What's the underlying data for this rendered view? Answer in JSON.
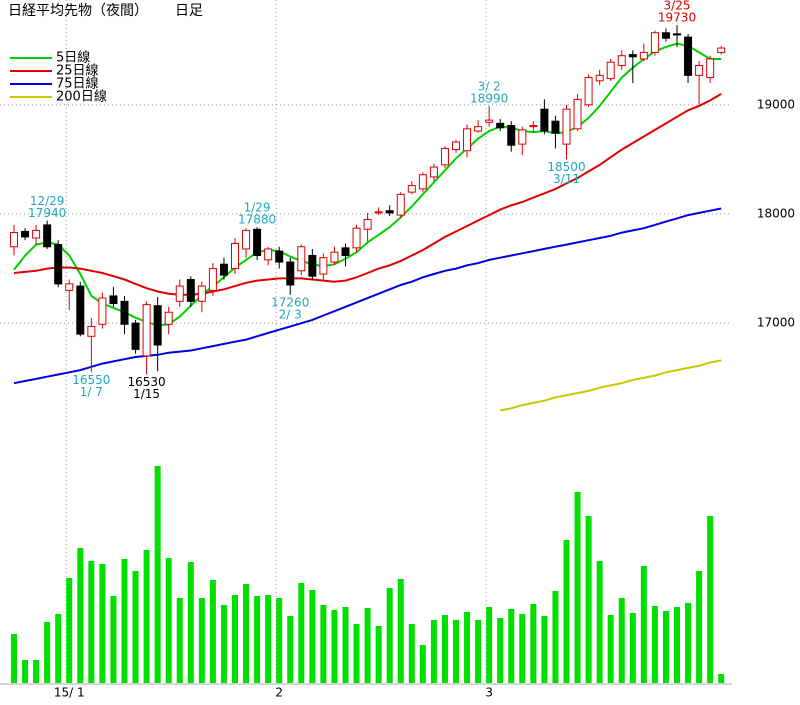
{
  "chart_data": {
    "type": "candlestick",
    "title": "日経平均先物（夜間）",
    "subtitle": "日足",
    "categories": [
      null,
      null,
      null,
      null,
      null,
      "15/ 1",
      null,
      null,
      null,
      null,
      null,
      null,
      null,
      null,
      null,
      null,
      null,
      null,
      null,
      null,
      null,
      null,
      null,
      null,
      "2",
      null,
      null,
      null,
      null,
      null,
      null,
      null,
      null,
      null,
      null,
      null,
      null,
      null,
      null,
      null,
      null,
      null,
      null,
      "3",
      null,
      null,
      null,
      null,
      null,
      null,
      null,
      null,
      null,
      null,
      null,
      null,
      null,
      null,
      null,
      null,
      null,
      null,
      null,
      null,
      null
    ],
    "open": [
      17700,
      17840,
      17780,
      17900,
      17720,
      17300,
      17340,
      16880,
      16990,
      17250,
      17200,
      17000,
      16700,
      17160,
      16990,
      17200,
      17400,
      17200,
      17300,
      17540,
      17500,
      17680,
      17860,
      17580,
      17660,
      17560,
      17480,
      17620,
      17450,
      17560,
      17690,
      17690,
      17860,
      18010,
      18030,
      17990,
      18200,
      18230,
      18340,
      18450,
      18590,
      18580,
      18760,
      18840,
      18830,
      18810,
      18640,
      18800,
      18960,
      18850,
      18640,
      18780,
      19000,
      19220,
      19240,
      19360,
      19460,
      19420,
      19480,
      19660,
      19650,
      19620,
      19270,
      19250,
      19480
    ],
    "high": [
      17900,
      17870,
      17900,
      17940,
      17760,
      17400,
      17380,
      17050,
      17280,
      17330,
      17250,
      17030,
      17200,
      17240,
      17150,
      17400,
      17430,
      17380,
      17550,
      17600,
      17780,
      17870,
      17880,
      17700,
      17700,
      17600,
      17720,
      17680,
      17640,
      17700,
      17730,
      17900,
      18010,
      18060,
      18080,
      18200,
      18300,
      18380,
      18460,
      18620,
      18680,
      18820,
      18860,
      18990,
      18870,
      18850,
      18800,
      18850,
      19050,
      18900,
      19000,
      19100,
      19280,
      19320,
      19420,
      19500,
      19500,
      19560,
      19680,
      19700,
      19730,
      19650,
      19400,
      19450,
      19540
    ],
    "low": [
      17620,
      17760,
      17720,
      17680,
      17330,
      17120,
      16880,
      16550,
      16950,
      17150,
      16900,
      16720,
      16530,
      16560,
      16900,
      17150,
      17150,
      17100,
      17250,
      17400,
      17450,
      17600,
      17580,
      17530,
      17500,
      17260,
      17440,
      17400,
      17400,
      17530,
      17520,
      17650,
      17750,
      17990,
      17980,
      17960,
      18180,
      18200,
      18300,
      18420,
      18560,
      18520,
      18740,
      18800,
      18760,
      18570,
      18540,
      18750,
      18730,
      18600,
      18500,
      18760,
      18980,
      19180,
      19220,
      19320,
      19200,
      19400,
      19450,
      19580,
      19530,
      19200,
      19000,
      19200,
      19460
    ],
    "close": [
      17830,
      17790,
      17850,
      17700,
      17360,
      17360,
      16900,
      16970,
      17230,
      17180,
      16990,
      16760,
      17170,
      16800,
      17100,
      17340,
      17200,
      17340,
      17500,
      17440,
      17730,
      17850,
      17620,
      17680,
      17560,
      17350,
      17700,
      17430,
      17600,
      17650,
      17620,
      17870,
      17950,
      18020,
      18010,
      18180,
      18260,
      18360,
      18430,
      18600,
      18660,
      18780,
      18800,
      18860,
      18790,
      18630,
      18770,
      18810,
      18760,
      18740,
      18960,
      19050,
      19250,
      19270,
      19390,
      19450,
      19440,
      19480,
      19660,
      19610,
      19640,
      19270,
      19360,
      19420,
      19520
    ],
    "up_color": "#e00000",
    "down_color": "#000000",
    "lines": [
      {
        "name": "5日線",
        "color": "#00d000",
        "values": [
          17490,
          17620,
          17720,
          17740,
          17720,
          17620,
          17450,
          17250,
          17180,
          17140,
          17100,
          17050,
          17010,
          16980,
          16990,
          17060,
          17160,
          17260,
          17340,
          17420,
          17510,
          17580,
          17650,
          17670,
          17660,
          17610,
          17570,
          17540,
          17520,
          17540,
          17590,
          17650,
          17740,
          17810,
          17880,
          17970,
          18070,
          18180,
          18290,
          18400,
          18510,
          18600,
          18690,
          18760,
          18800,
          18790,
          18760,
          18750,
          18760,
          18740,
          18750,
          18800,
          18880,
          18990,
          19120,
          19250,
          19340,
          19420,
          19490,
          19530,
          19560,
          19540,
          19480,
          19420,
          19420
        ]
      },
      {
        "name": "25日線",
        "color": "#e00000",
        "values": [
          17460,
          17470,
          17480,
          17500,
          17510,
          17510,
          17500,
          17480,
          17460,
          17430,
          17400,
          17360,
          17320,
          17290,
          17270,
          17260,
          17260,
          17270,
          17290,
          17310,
          17340,
          17370,
          17390,
          17400,
          17410,
          17410,
          17410,
          17400,
          17390,
          17380,
          17390,
          17420,
          17460,
          17500,
          17530,
          17570,
          17620,
          17670,
          17730,
          17790,
          17840,
          17890,
          17940,
          17990,
          18040,
          18080,
          18110,
          18150,
          18190,
          18230,
          18280,
          18330,
          18390,
          18450,
          18520,
          18590,
          18650,
          18710,
          18770,
          18830,
          18890,
          18950,
          18990,
          19040,
          19100
        ]
      },
      {
        "name": "75日線",
        "color": "#0000e0",
        "values": [
          16450,
          16470,
          16490,
          16510,
          16530,
          16550,
          16570,
          16600,
          16630,
          16650,
          16670,
          16690,
          16700,
          16710,
          16730,
          16740,
          16750,
          16770,
          16790,
          16810,
          16830,
          16850,
          16880,
          16910,
          16940,
          16970,
          17000,
          17030,
          17070,
          17110,
          17150,
          17190,
          17230,
          17270,
          17310,
          17350,
          17380,
          17420,
          17450,
          17480,
          17500,
          17530,
          17550,
          17580,
          17600,
          17620,
          17640,
          17660,
          17680,
          17700,
          17720,
          17740,
          17760,
          17780,
          17800,
          17830,
          17850,
          17870,
          17900,
          17930,
          17960,
          17990,
          18010,
          18030,
          18050
        ]
      },
      {
        "name": "200日線",
        "color": "#c8c800",
        "values": [
          null,
          null,
          null,
          null,
          null,
          null,
          null,
          null,
          null,
          null,
          null,
          null,
          null,
          null,
          null,
          null,
          null,
          null,
          null,
          null,
          null,
          null,
          null,
          null,
          null,
          null,
          null,
          null,
          null,
          null,
          null,
          null,
          null,
          null,
          null,
          null,
          null,
          null,
          null,
          null,
          null,
          null,
          null,
          null,
          16200,
          16220,
          16250,
          16270,
          16290,
          16320,
          16340,
          16360,
          16380,
          16410,
          16430,
          16450,
          16480,
          16500,
          16520,
          16550,
          16570,
          16590,
          16610,
          16640,
          16660
        ]
      }
    ],
    "volume": {
      "color": "#00e000",
      "ylim": [
        0,
        220
      ],
      "values": [
        49,
        23,
        23,
        61,
        69,
        105,
        135,
        122,
        119,
        87,
        124,
        112,
        133,
        217,
        125,
        85,
        121,
        85,
        103,
        78,
        88,
        99,
        87,
        88,
        85,
        67,
        100,
        93,
        78,
        73,
        76,
        59,
        75,
        57,
        95,
        104,
        59,
        38,
        63,
        68,
        63,
        71,
        63,
        76,
        65,
        74,
        69,
        79,
        67,
        92,
        143,
        191,
        167,
        122,
        68,
        85,
        70,
        117,
        77,
        72,
        76,
        80,
        112,
        167,
        9
      ]
    },
    "ylim": [
      15930,
      19960
    ],
    "yticks": [
      17000,
      18000,
      19000
    ],
    "grid": true,
    "legend": "upper left",
    "annotations": [
      {
        "date": "12/29",
        "price": 17940,
        "kind": "high",
        "color": "#20a8c0"
      },
      {
        "date": "1/29",
        "price": 17880,
        "kind": "high",
        "color": "#20a8c0"
      },
      {
        "date": "3/ 2",
        "price": 18990,
        "kind": "high",
        "color": "#20a8c0"
      },
      {
        "date": "3/25",
        "price": 19730,
        "kind": "high",
        "color": "#e00000"
      },
      {
        "date": "1/ 7",
        "price": 16550,
        "kind": "low",
        "color": "#20a8c0"
      },
      {
        "date": "1/15",
        "price": 16530,
        "kind": "low",
        "color": "#000000"
      },
      {
        "date": "2/ 3",
        "price": 17260,
        "kind": "low",
        "color": "#20a8c0"
      },
      {
        "date": "3/11",
        "price": 18500,
        "kind": "low",
        "color": "#20a8c0"
      }
    ]
  }
}
